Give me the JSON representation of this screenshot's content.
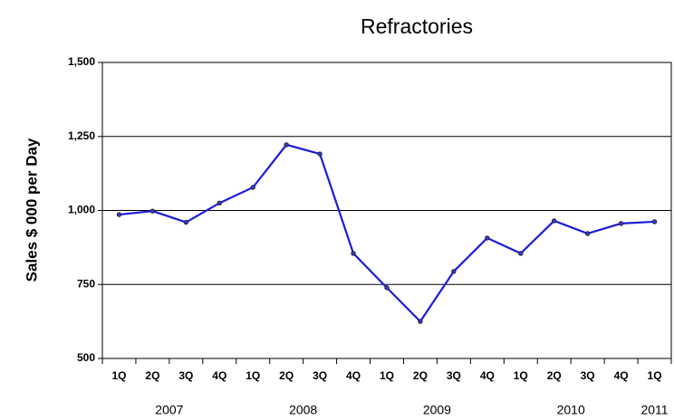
{
  "chart_data": {
    "type": "line",
    "title": "Refractories",
    "y_label": "Sales $ 000 per Day",
    "categories": [
      "1Q",
      "2Q",
      "3Q",
      "4Q",
      "1Q",
      "2Q",
      "3Q",
      "4Q",
      "1Q",
      "2Q",
      "3Q",
      "4Q",
      "1Q",
      "2Q",
      "3Q",
      "4Q",
      "1Q"
    ],
    "years": [
      "2007",
      "2008",
      "2009",
      "2010",
      "2011"
    ],
    "series": [
      {
        "name": "Refractories",
        "color": "#1c1cd6",
        "values": [
          986,
          998,
          960,
          1025,
          1078,
          1222,
          1191,
          855,
          739,
          625,
          794,
          907,
          855,
          965,
          922,
          956,
          962
        ]
      }
    ],
    "ylim": [
      500,
      1500
    ],
    "yticks": [
      {
        "value": 500,
        "label": "500"
      },
      {
        "value": 750,
        "label": "750"
      },
      {
        "value": 1000,
        "label": "1,000"
      },
      {
        "value": 1250,
        "label": "1,250"
      },
      {
        "value": 1500,
        "label": "1,500"
      }
    ],
    "grid": true
  }
}
